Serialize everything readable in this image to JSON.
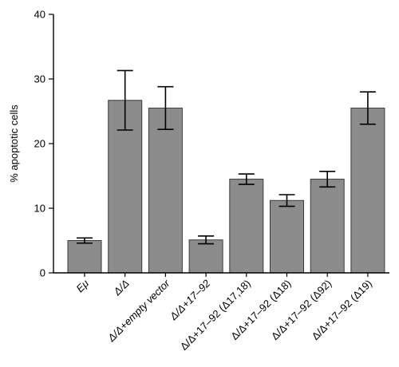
{
  "chart_data": {
    "type": "bar",
    "title": "",
    "xlabel": "",
    "ylabel": "% apoptotic cells",
    "ylim": [
      0,
      40
    ],
    "yticks": [
      0,
      10,
      20,
      30,
      40
    ],
    "categories": [
      "Eμ",
      "Δ/Δ",
      "Δ/Δ+empty vector",
      "Δ/Δ+17–92",
      "Δ/Δ+17–92 (Δ17,18)",
      "Δ/Δ+17–92 (Δ18)",
      "Δ/Δ+17–92 (Δ92)",
      "Δ/Δ+17–92 (Δ19)"
    ],
    "values": [
      5.0,
      26.7,
      25.5,
      5.1,
      14.5,
      11.2,
      14.5,
      25.5
    ],
    "error": [
      0.4,
      4.6,
      3.3,
      0.6,
      0.8,
      0.9,
      1.2,
      2.5
    ],
    "bar_color": "#8c8c8c",
    "grid": false,
    "legend": "none"
  }
}
